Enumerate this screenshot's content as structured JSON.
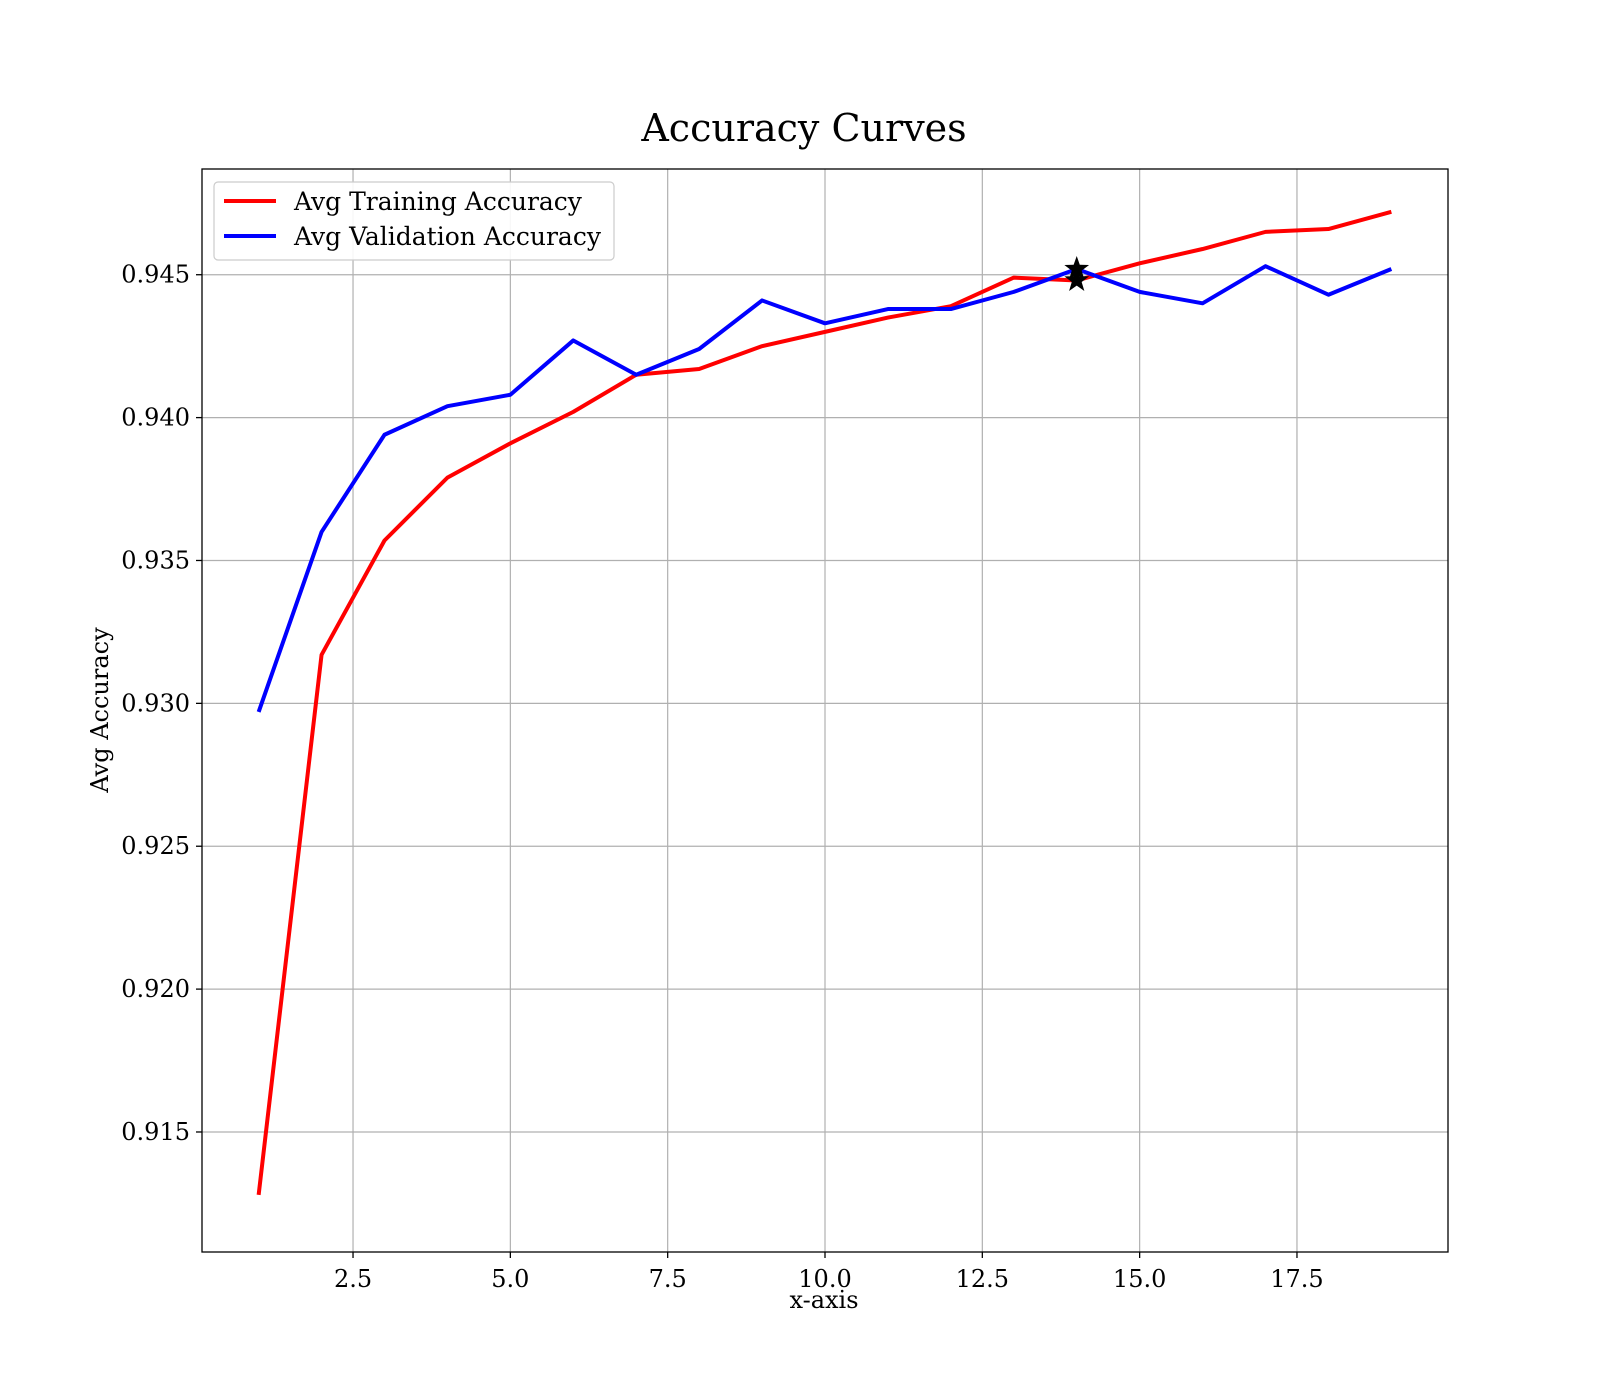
{
  "chart_data": {
    "type": "line",
    "title": "Accuracy Curves",
    "xlabel": "x-axis",
    "ylabel": "Avg Accuracy",
    "xlim": [
      0.1,
      19.9
    ],
    "ylim": [
      0.9108,
      0.9487
    ],
    "xticks": [
      2.5,
      5.0,
      7.5,
      10.0,
      12.5,
      15.0,
      17.5
    ],
    "xtick_labels": [
      "2.5",
      "5.0",
      "7.5",
      "10.0",
      "12.5",
      "15.0",
      "17.5"
    ],
    "yticks": [
      0.915,
      0.92,
      0.925,
      0.93,
      0.935,
      0.94,
      0.945
    ],
    "ytick_labels": [
      "0.915",
      "0.920",
      "0.925",
      "0.930",
      "0.935",
      "0.940",
      "0.945"
    ],
    "grid": true,
    "legend_position": "top-left",
    "x": [
      1,
      2,
      3,
      4,
      5,
      6,
      7,
      8,
      9,
      10,
      11,
      12,
      13,
      14,
      15,
      16,
      17,
      18,
      19
    ],
    "series": [
      {
        "name": "Avg Training Accuracy",
        "color": "#ff0000",
        "values": [
          0.9128,
          0.9317,
          0.9357,
          0.9379,
          0.9391,
          0.9402,
          0.9415,
          0.9417,
          0.9425,
          0.943,
          0.9435,
          0.9439,
          0.9449,
          0.9448,
          0.9454,
          0.9459,
          0.9465,
          0.9466,
          0.9472
        ]
      },
      {
        "name": "Avg Validation Accuracy",
        "color": "#0000ff",
        "values": [
          0.9297,
          0.936,
          0.9394,
          0.9404,
          0.9408,
          0.9427,
          0.9415,
          0.9424,
          0.9441,
          0.9433,
          0.9438,
          0.9438,
          0.9444,
          0.9452,
          0.9444,
          0.944,
          0.9453,
          0.9443,
          0.9452
        ]
      }
    ],
    "markers": [
      {
        "series": "Avg Training Accuracy",
        "x": 14,
        "y": 0.9448,
        "symbol": "star",
        "color": "#000000"
      },
      {
        "series": "Avg Validation Accuracy",
        "x": 14,
        "y": 0.9452,
        "symbol": "star",
        "color": "#000000"
      }
    ]
  }
}
